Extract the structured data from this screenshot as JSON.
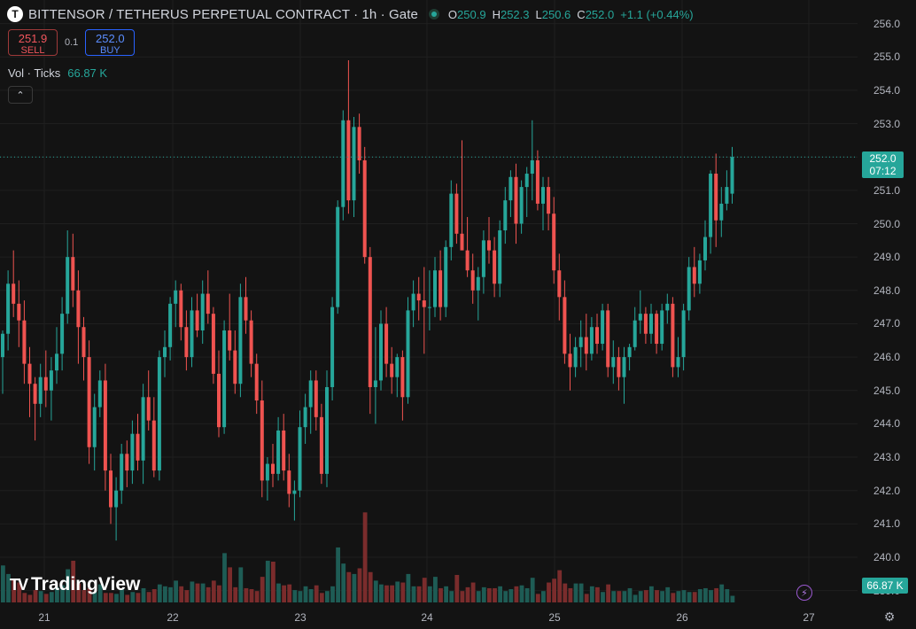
{
  "header": {
    "symbol_letter": "T",
    "title": "BITTENSOR / TETHERUS PERPETUAL CONTRACT · 1h · Gate",
    "ohlc": [
      {
        "k": "O",
        "v": "250.9"
      },
      {
        "k": "H",
        "v": "252.3"
      },
      {
        "k": "L",
        "v": "250.6"
      },
      {
        "k": "C",
        "v": "252.0"
      }
    ],
    "change": "+1.1 (+0.44%)"
  },
  "trade": {
    "sell_price": "251.9",
    "sell_label": "SELL",
    "spread": "0.1",
    "buy_price": "252.0",
    "buy_label": "BUY"
  },
  "volume_legend": {
    "label": "Vol · Ticks",
    "value": "66.87 K"
  },
  "collapse_icon": "chevron-up-icon",
  "price_axis": [
    "256.0",
    "255.0",
    "254.0",
    "253.0",
    "252.0",
    "251.0",
    "250.0",
    "249.0",
    "248.0",
    "247.0",
    "246.0",
    "245.0",
    "244.0",
    "243.0",
    "242.0",
    "241.0",
    "240.0",
    "239.0"
  ],
  "time_axis": [
    "21",
    "22",
    "23",
    "24",
    "25",
    "26",
    "27"
  ],
  "last_price": {
    "price": "252.0",
    "countdown": "07:12"
  },
  "volume_tag": "66.87 K",
  "branding": "TradingView",
  "colors": {
    "up": "#26a69a",
    "down": "#ef5350",
    "background": "#131313"
  },
  "chart_data": {
    "type": "candlestick",
    "interval": "1h",
    "ylim": [
      239,
      256
    ],
    "x_labels": [
      "21",
      "22",
      "23",
      "24",
      "25",
      "26",
      "27"
    ],
    "ohlc": [
      [
        246.0,
        246.8,
        244.9,
        246.7
      ],
      [
        246.7,
        248.6,
        246.2,
        248.2
      ],
      [
        248.2,
        249.2,
        247.2,
        247.6
      ],
      [
        247.6,
        248.3,
        246.3,
        247.1
      ],
      [
        247.1,
        247.7,
        245.2,
        245.8
      ],
      [
        245.8,
        246.3,
        244.2,
        245.2
      ],
      [
        245.2,
        245.4,
        243.5,
        244.6
      ],
      [
        244.6,
        245.8,
        244.2,
        245.4
      ],
      [
        245.4,
        246.2,
        244.5,
        245.0
      ],
      [
        245.0,
        246.0,
        244.1,
        245.6
      ],
      [
        245.6,
        246.9,
        245.2,
        246.1
      ],
      [
        246.1,
        247.8,
        245.6,
        247.3
      ],
      [
        247.3,
        249.8,
        247.0,
        249.0
      ],
      [
        249.0,
        249.7,
        247.5,
        248.0
      ],
      [
        248.0,
        248.6,
        245.8,
        246.9
      ],
      [
        246.9,
        247.2,
        245.3,
        246.0
      ],
      [
        246.0,
        246.5,
        242.8,
        243.3
      ],
      [
        243.3,
        244.9,
        242.6,
        244.5
      ],
      [
        244.5,
        245.6,
        244.2,
        245.3
      ],
      [
        245.3,
        245.8,
        242.0,
        242.6
      ],
      [
        242.6,
        243.1,
        241.0,
        241.5
      ],
      [
        241.5,
        242.4,
        240.5,
        242.0
      ],
      [
        242.0,
        243.4,
        241.6,
        243.1
      ],
      [
        243.1,
        243.5,
        242.1,
        242.6
      ],
      [
        242.6,
        244.1,
        242.2,
        243.7
      ],
      [
        243.7,
        244.3,
        242.6,
        242.9
      ],
      [
        242.9,
        245.2,
        242.2,
        244.8
      ],
      [
        244.8,
        245.6,
        243.8,
        244.1
      ],
      [
        244.1,
        244.8,
        242.4,
        242.6
      ],
      [
        242.6,
        246.2,
        242.3,
        246.0
      ],
      [
        246.0,
        246.8,
        245.4,
        246.3
      ],
      [
        246.3,
        247.8,
        245.9,
        247.6
      ],
      [
        247.6,
        248.3,
        246.9,
        248.0
      ],
      [
        248.0,
        248.2,
        246.5,
        246.9
      ],
      [
        246.9,
        247.4,
        245.6,
        246.0
      ],
      [
        246.0,
        247.8,
        245.7,
        247.4
      ],
      [
        247.4,
        247.9,
        246.6,
        246.8
      ],
      [
        246.8,
        248.3,
        246.4,
        247.9
      ],
      [
        247.9,
        248.6,
        247.0,
        247.3
      ],
      [
        247.3,
        247.5,
        245.2,
        245.5
      ],
      [
        245.5,
        246.2,
        243.6,
        243.9
      ],
      [
        243.9,
        247.1,
        243.7,
        246.8
      ],
      [
        246.8,
        247.9,
        245.9,
        246.2
      ],
      [
        246.2,
        246.8,
        244.9,
        245.2
      ],
      [
        245.2,
        248.2,
        244.8,
        247.8
      ],
      [
        247.8,
        248.4,
        246.7,
        247.1
      ],
      [
        247.1,
        247.4,
        245.4,
        245.8
      ],
      [
        245.8,
        246.1,
        244.3,
        244.7
      ],
      [
        244.7,
        245.3,
        241.8,
        242.3
      ],
      [
        242.3,
        243.0,
        241.7,
        242.8
      ],
      [
        242.8,
        243.4,
        242.1,
        242.5
      ],
      [
        242.5,
        244.2,
        242.3,
        243.8
      ],
      [
        243.8,
        244.3,
        242.3,
        242.6
      ],
      [
        242.6,
        243.1,
        241.5,
        241.9
      ],
      [
        241.9,
        242.3,
        241.1,
        242.0
      ],
      [
        242.0,
        244.4,
        241.8,
        243.9
      ],
      [
        243.9,
        244.9,
        243.4,
        244.5
      ],
      [
        244.5,
        245.6,
        243.7,
        245.3
      ],
      [
        245.3,
        245.6,
        243.8,
        244.2
      ],
      [
        244.2,
        244.6,
        242.2,
        242.5
      ],
      [
        242.5,
        245.6,
        242.1,
        245.1
      ],
      [
        245.1,
        247.8,
        244.7,
        247.5
      ],
      [
        247.5,
        250.7,
        247.3,
        250.5
      ],
      [
        250.5,
        253.4,
        250.1,
        253.1
      ],
      [
        253.1,
        254.9,
        250.3,
        250.7
      ],
      [
        250.7,
        253.2,
        250.2,
        252.9
      ],
      [
        252.9,
        253.3,
        251.5,
        251.9
      ],
      [
        251.9,
        252.3,
        248.8,
        249.0
      ],
      [
        249.0,
        249.3,
        244.3,
        245.1
      ],
      [
        245.1,
        246.9,
        244.0,
        245.3
      ],
      [
        245.3,
        247.4,
        245.0,
        247.0
      ],
      [
        247.0,
        247.5,
        245.4,
        245.8
      ],
      [
        245.8,
        246.3,
        244.9,
        245.4
      ],
      [
        245.4,
        246.1,
        244.8,
        246.0
      ],
      [
        246.0,
        246.2,
        244.1,
        244.8
      ],
      [
        244.8,
        247.8,
        244.6,
        247.4
      ],
      [
        247.4,
        248.3,
        246.9,
        247.9
      ],
      [
        247.9,
        248.4,
        247.1,
        247.7
      ],
      [
        247.7,
        248.7,
        246.1,
        247.5
      ],
      [
        247.5,
        248.6,
        246.8,
        247.5
      ],
      [
        247.5,
        249.0,
        247.2,
        248.6
      ],
      [
        248.6,
        249.2,
        247.1,
        247.5
      ],
      [
        247.5,
        249.5,
        247.2,
        249.3
      ],
      [
        249.3,
        251.3,
        248.9,
        250.9
      ],
      [
        250.9,
        251.2,
        249.4,
        249.7
      ],
      [
        249.7,
        252.5,
        249.3,
        249.2
      ],
      [
        249.2,
        250.2,
        248.4,
        248.6
      ],
      [
        248.6,
        249.1,
        247.6,
        248.0
      ],
      [
        248.0,
        248.7,
        247.1,
        248.4
      ],
      [
        248.4,
        249.8,
        247.9,
        249.5
      ],
      [
        249.5,
        250.2,
        248.8,
        249.2
      ],
      [
        249.2,
        249.6,
        247.8,
        248.2
      ],
      [
        248.2,
        250.1,
        247.8,
        249.8
      ],
      [
        249.8,
        251.1,
        249.4,
        250.7
      ],
      [
        250.7,
        251.6,
        250.2,
        251.4
      ],
      [
        251.4,
        251.8,
        249.4,
        250.0
      ],
      [
        250.0,
        251.3,
        249.7,
        251.1
      ],
      [
        251.1,
        251.7,
        250.2,
        251.5
      ],
      [
        251.5,
        253.1,
        250.7,
        251.9
      ],
      [
        251.9,
        252.2,
        250.4,
        250.6
      ],
      [
        250.6,
        251.4,
        249.8,
        251.1
      ],
      [
        251.1,
        251.4,
        249.8,
        250.3
      ],
      [
        250.3,
        250.8,
        248.2,
        248.6
      ],
      [
        248.6,
        249.1,
        247.1,
        247.8
      ],
      [
        247.8,
        248.3,
        245.8,
        246.1
      ],
      [
        246.1,
        246.7,
        245.0,
        245.7
      ],
      [
        245.7,
        246.6,
        245.4,
        246.3
      ],
      [
        246.3,
        247.1,
        245.7,
        246.6
      ],
      [
        246.6,
        247.3,
        245.6,
        246.1
      ],
      [
        246.1,
        247.2,
        245.9,
        246.9
      ],
      [
        246.9,
        247.3,
        246.1,
        246.4
      ],
      [
        246.4,
        247.6,
        246.2,
        247.4
      ],
      [
        247.4,
        247.6,
        245.4,
        245.7
      ],
      [
        245.7,
        246.5,
        245.2,
        246.0
      ],
      [
        246.0,
        246.3,
        245.0,
        245.4
      ],
      [
        245.4,
        246.3,
        244.6,
        246.0
      ],
      [
        246.0,
        246.4,
        245.6,
        246.3
      ],
      [
        246.3,
        247.5,
        246.2,
        247.1
      ],
      [
        247.1,
        248.0,
        246.7,
        247.3
      ],
      [
        247.3,
        247.5,
        246.4,
        246.7
      ],
      [
        246.7,
        247.6,
        246.4,
        247.3
      ],
      [
        247.3,
        247.4,
        246.1,
        246.4
      ],
      [
        246.4,
        247.6,
        246.2,
        247.4
      ],
      [
        247.4,
        247.9,
        247.0,
        247.6
      ],
      [
        247.6,
        247.8,
        245.4,
        245.7
      ],
      [
        245.7,
        246.6,
        245.4,
        246.0
      ],
      [
        246.0,
        247.6,
        245.6,
        247.4
      ],
      [
        247.4,
        249.0,
        247.1,
        248.7
      ],
      [
        248.7,
        249.3,
        247.8,
        248.2
      ],
      [
        248.2,
        249.1,
        247.9,
        248.9
      ],
      [
        248.9,
        250.1,
        248.6,
        249.6
      ],
      [
        249.6,
        251.6,
        249.1,
        251.5
      ],
      [
        251.5,
        252.1,
        249.3,
        250.1
      ],
      [
        250.1,
        251.1,
        249.6,
        250.6
      ],
      [
        250.6,
        251.6,
        250.4,
        251.1
      ],
      [
        250.9,
        252.3,
        250.6,
        252.0
      ]
    ],
    "volume": [
      39,
      30,
      25,
      21,
      10,
      8,
      13,
      12,
      9,
      11,
      16,
      18,
      35,
      44,
      20,
      13,
      15,
      11,
      19,
      10,
      10,
      9,
      14,
      8,
      11,
      10,
      15,
      11,
      14,
      19,
      17,
      16,
      23,
      17,
      13,
      22,
      20,
      20,
      16,
      23,
      18,
      52,
      37,
      16,
      37,
      15,
      14,
      12,
      27,
      44,
      43,
      20,
      18,
      19,
      13,
      12,
      17,
      14,
      18,
      10,
      12,
      17,
      58,
      41,
      32,
      30,
      36,
      95,
      32,
      23,
      19,
      18,
      18,
      22,
      21,
      30,
      17,
      17,
      26,
      17,
      27,
      15,
      17,
      12,
      29,
      12,
      16,
      21,
      12,
      16,
      15,
      15,
      17,
      12,
      14,
      17,
      18,
      15,
      26,
      9,
      12,
      21,
      25,
      34,
      20,
      15,
      20,
      20,
      9,
      17,
      16,
      11,
      19,
      12,
      12,
      12,
      15,
      8,
      12,
      13,
      17,
      13,
      12,
      16,
      10,
      12,
      13,
      11,
      11,
      14,
      15,
      13,
      15,
      19,
      14,
      7
    ]
  }
}
